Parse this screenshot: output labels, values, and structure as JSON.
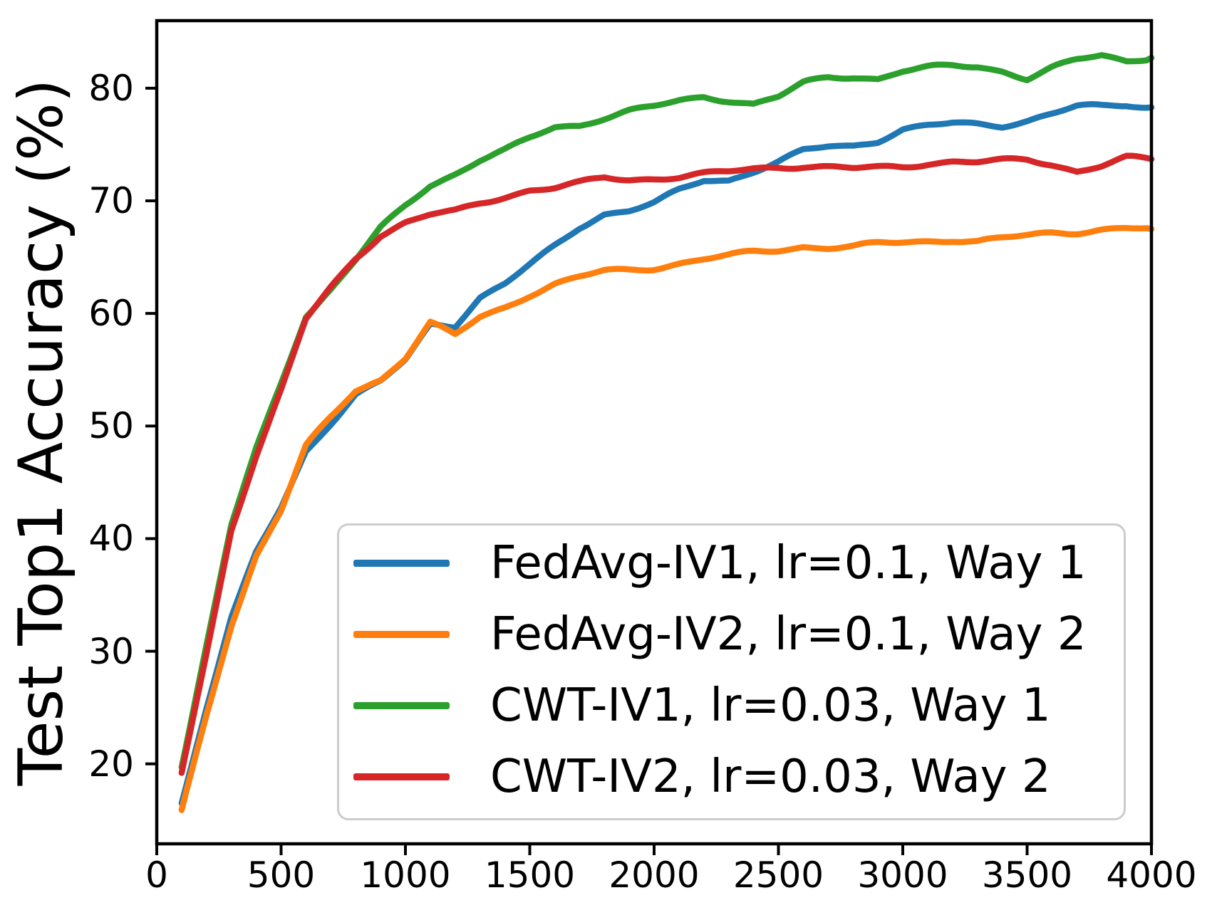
{
  "chart_data": {
    "type": "line",
    "title": "",
    "xlabel": "",
    "ylabel": "Test Top1 Accuracy (%)",
    "xlim": [
      0,
      4000
    ],
    "ylim": [
      12.9,
      86.0
    ],
    "x_ticks": [
      0,
      500,
      1000,
      1500,
      2000,
      2500,
      3000,
      3500,
      4000
    ],
    "y_ticks": [
      20,
      30,
      40,
      50,
      60,
      70,
      80
    ],
    "grid": false,
    "legend_position": "inside lower-right",
    "axis_color": "#000000",
    "x": [
      100,
      200,
      300,
      400,
      500,
      600,
      700,
      800,
      900,
      1000,
      1100,
      1200,
      1300,
      1400,
      1500,
      1600,
      1700,
      1800,
      1900,
      2000,
      2100,
      2200,
      2300,
      2400,
      2500,
      2600,
      2700,
      2800,
      2900,
      3000,
      3100,
      3200,
      3300,
      3400,
      3500,
      3600,
      3700,
      3800,
      3900,
      4000
    ],
    "series": [
      {
        "label": "FedAvg-IV1, lr=0.1, Way 1",
        "color": "#1f77b4",
        "values": [
          16.5,
          25.0,
          33.0,
          38.8,
          42.8,
          47.8,
          50.3,
          52.8,
          53.9,
          55.8,
          59.0,
          58.9,
          61.4,
          62.6,
          64.3,
          66.0,
          67.7,
          68.9,
          69.2,
          69.8,
          70.9,
          71.8,
          71.8,
          72.6,
          73.4,
          74.4,
          74.8,
          74.9,
          75.4,
          76.4,
          76.7,
          76.9,
          76.8,
          76.7,
          77.1,
          77.7,
          78.3,
          78.3,
          78.5,
          78.3
        ]
      },
      {
        "label": "FedAvg-IV2, lr=0.1, Way 2",
        "color": "#ff7f0e",
        "values": [
          15.9,
          24.3,
          32.3,
          38.5,
          42.5,
          48.2,
          50.7,
          53.1,
          54.1,
          56.1,
          59.2,
          58.1,
          59.7,
          60.6,
          61.7,
          62.6,
          63.2,
          63.7,
          63.8,
          64.0,
          64.4,
          64.8,
          65.1,
          65.5,
          65.7,
          66.0,
          65.9,
          65.9,
          66.2,
          66.3,
          66.4,
          66.5,
          66.3,
          66.6,
          66.9,
          67.2,
          67.3,
          67.5,
          67.6,
          67.5
        ]
      },
      {
        "label": "CWT-IV1, lr=0.03, Way 1",
        "color": "#2ca02c",
        "values": [
          19.7,
          30.5,
          41.2,
          48.0,
          53.8,
          59.8,
          62.2,
          64.8,
          67.6,
          69.6,
          71.4,
          72.4,
          73.6,
          74.4,
          75.5,
          76.5,
          76.7,
          77.4,
          78.0,
          78.4,
          78.9,
          79.3,
          79.0,
          78.6,
          79.2,
          80.4,
          80.9,
          81.0,
          80.8,
          81.5,
          81.8,
          82.0,
          82.0,
          81.6,
          80.9,
          81.8,
          82.5,
          82.9,
          82.4,
          82.7
        ]
      },
      {
        "label": "CWT-IV2, lr=0.03, Way 2",
        "color": "#d62728",
        "values": [
          19.2,
          29.8,
          40.8,
          47.4,
          53.2,
          59.5,
          62.3,
          64.9,
          66.9,
          68.0,
          68.7,
          69.0,
          69.8,
          70.4,
          71.0,
          71.2,
          71.6,
          72.1,
          71.9,
          72.0,
          72.1,
          72.3,
          72.5,
          72.8,
          73.0,
          73.1,
          73.0,
          72.9,
          73.0,
          73.1,
          73.4,
          73.5,
          73.4,
          73.5,
          73.6,
          73.2,
          72.6,
          73.1,
          73.8,
          73.7
        ]
      }
    ]
  }
}
